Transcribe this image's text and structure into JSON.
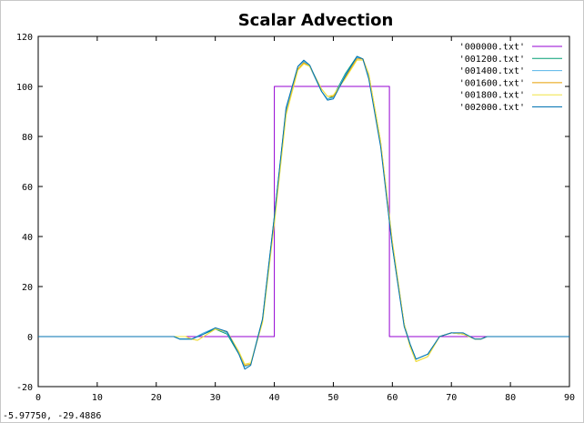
{
  "window": {
    "status_text": "-5.97750, -29.4886"
  },
  "chart_data": {
    "type": "line",
    "title": "Scalar Advection",
    "xlabel": "",
    "ylabel": "",
    "xlim": [
      0,
      90
    ],
    "ylim": [
      -20,
      120
    ],
    "xticks": [
      0,
      10,
      20,
      30,
      40,
      50,
      60,
      70,
      80,
      90
    ],
    "yticks": [
      -20,
      0,
      20,
      40,
      60,
      80,
      100,
      120
    ],
    "grid": false,
    "legend_position": "top-right",
    "series": [
      {
        "name": "'000000.txt'",
        "color": "#9400d3",
        "x": [
          0,
          40,
          40,
          59.5,
          59.5,
          90
        ],
        "y": [
          0,
          0,
          100,
          100,
          0,
          0
        ]
      },
      {
        "name": "'001200.txt'",
        "color": "#009e73",
        "x": [
          0,
          23,
          24,
          26,
          28,
          30,
          32,
          34,
          35,
          36,
          38,
          40,
          42,
          44,
          45,
          46,
          48,
          49,
          50,
          52,
          54,
          55,
          56,
          58,
          60,
          62,
          63,
          64,
          66,
          68,
          70,
          72,
          74,
          75,
          76,
          90
        ],
        "y": [
          0,
          0,
          -1,
          -1,
          1,
          3,
          1,
          -7,
          -12,
          -11,
          7,
          48,
          91,
          108,
          110,
          108,
          98,
          95,
          96,
          105,
          112,
          111,
          104,
          77,
          36,
          5,
          -3,
          -9,
          -7,
          0,
          1.5,
          1,
          -1,
          -1,
          0,
          0
        ]
      },
      {
        "name": "'001400.txt'",
        "color": "#56b4e9",
        "x": [
          0,
          23,
          24,
          26,
          28,
          30,
          32,
          34,
          35,
          36,
          38,
          40,
          42,
          44,
          45,
          46,
          48,
          49,
          50,
          52,
          54,
          55,
          56,
          58,
          60,
          62,
          63,
          64,
          66,
          68,
          70,
          72,
          74,
          75,
          76,
          90
        ],
        "y": [
          0,
          0,
          -1,
          -1,
          1.5,
          3.5,
          1.5,
          -6.5,
          -12,
          -11,
          6.5,
          47,
          90,
          108,
          110,
          108,
          98,
          95,
          95.5,
          104.5,
          111.5,
          111,
          104,
          77,
          37,
          5,
          -3,
          -9,
          -7,
          0,
          1.5,
          1,
          -1,
          -1,
          0,
          0
        ]
      },
      {
        "name": "'001600.txt'",
        "color": "#e69f00",
        "x": [
          0,
          25,
          26,
          27,
          28,
          30,
          32,
          34,
          35,
          36,
          38,
          40,
          42,
          44,
          45,
          46,
          48,
          49,
          50,
          52,
          54,
          55,
          56,
          58,
          60,
          62,
          63,
          64,
          66,
          68,
          70,
          72,
          74,
          75,
          76,
          90
        ],
        "y": [
          0,
          0,
          -1,
          -1.5,
          0,
          3,
          2,
          -6,
          -11.5,
          -11,
          6,
          46,
          89,
          107,
          109.5,
          108,
          99,
          96,
          96,
          103.5,
          111,
          111,
          105,
          78,
          38,
          5,
          -4,
          -10,
          -8,
          0,
          1.5,
          1,
          -1,
          -1,
          0,
          0
        ]
      },
      {
        "name": "'001800.txt'",
        "color": "#f0e442",
        "x": [
          0,
          25,
          26,
          27,
          28,
          30,
          32,
          34,
          35,
          36,
          38,
          40,
          42,
          44,
          45,
          46,
          48,
          49,
          50,
          52,
          54,
          55,
          56,
          58,
          60,
          62,
          63,
          64,
          66,
          68,
          70,
          72,
          74,
          75,
          76,
          90
        ],
        "y": [
          0,
          0,
          -1,
          -1.5,
          0,
          3,
          2,
          -6,
          -11,
          -10.5,
          5.5,
          45,
          88.5,
          106.5,
          109,
          108,
          99,
          96,
          96.5,
          103,
          110.5,
          110.5,
          105,
          78,
          38,
          5,
          -4,
          -10,
          -8,
          0,
          1.5,
          1,
          -1,
          -1,
          0,
          0
        ]
      },
      {
        "name": "'002000.txt'",
        "color": "#0072b2",
        "x": [
          0,
          23,
          24,
          26,
          28,
          30,
          32,
          34,
          35,
          36,
          38,
          40,
          42,
          44,
          45,
          46,
          48,
          49,
          50,
          52,
          54,
          55,
          56,
          58,
          60,
          62,
          63,
          64,
          66,
          68,
          70,
          72,
          74,
          75,
          76,
          90
        ],
        "y": [
          0,
          0,
          -1,
          -1,
          1,
          3.5,
          2,
          -7,
          -13,
          -11.5,
          7,
          48,
          91.5,
          108,
          110.5,
          108.5,
          98,
          94.5,
          95,
          104,
          112,
          111,
          103,
          76,
          36,
          4,
          -3,
          -9,
          -7,
          0,
          1.5,
          1.5,
          -1,
          -1,
          0,
          0
        ]
      }
    ]
  }
}
